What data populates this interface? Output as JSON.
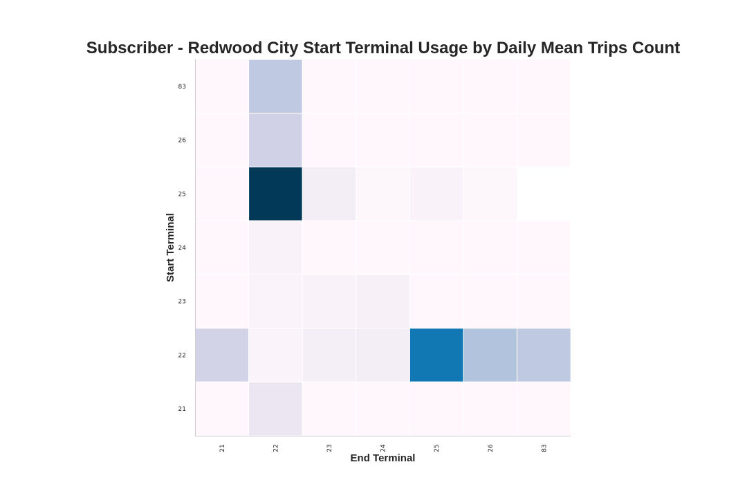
{
  "chart_data": {
    "type": "heatmap",
    "title": "Subscriber - Redwood City Start Terminal Usage by Daily Mean Trips Count",
    "xlabel": "End Terminal",
    "ylabel": "Start Terminal",
    "x_categories": [
      "21",
      "22",
      "23",
      "24",
      "25",
      "26",
      "83"
    ],
    "y_categories": [
      "83",
      "26",
      "25",
      "24",
      "23",
      "22",
      "21"
    ],
    "values": [
      [
        0.0,
        0.3,
        0.0,
        0.0,
        0.0,
        0.0,
        0.0
      ],
      [
        0.0,
        0.25,
        0.0,
        0.0,
        0.0,
        0.0,
        0.0
      ],
      [
        0.0,
        1.0,
        0.08,
        0.01,
        0.04,
        0.01,
        null
      ],
      [
        0.0,
        0.04,
        0.0,
        0.0,
        0.0,
        0.0,
        0.0
      ],
      [
        0.0,
        0.03,
        0.04,
        0.05,
        0.0,
        0.0,
        0.0
      ],
      [
        0.24,
        0.03,
        0.07,
        0.08,
        0.72,
        0.34,
        0.3
      ],
      [
        0.0,
        0.13,
        0.0,
        0.0,
        0.0,
        0.0,
        0.0
      ]
    ],
    "colormap": "PuBu",
    "missing_color": "#ffffff",
    "grid": false,
    "legend": "none"
  }
}
